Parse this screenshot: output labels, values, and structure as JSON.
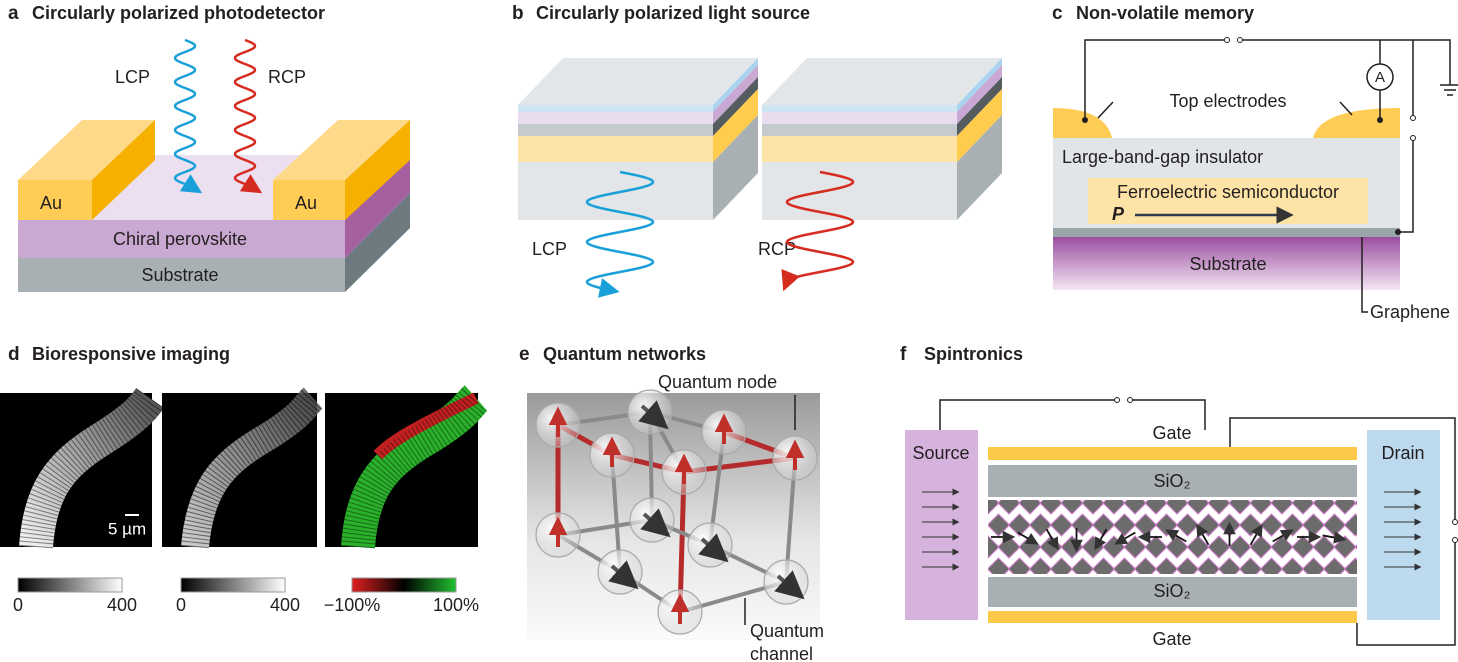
{
  "panels": [
    {
      "label": "a",
      "title": "Circularly polarized photodetector",
      "lcp": "LCP",
      "rcp": "RCP",
      "electrodes": [
        "Au",
        "Au"
      ],
      "layers": [
        "Chiral perovskite",
        "Substrate"
      ]
    },
    {
      "label": "b",
      "title": "Circularly polarized light source",
      "lcp": "LCP",
      "rcp": "RCP"
    },
    {
      "label": "c",
      "title": "Non-volatile memory",
      "top_electrodes": "Top electrodes",
      "ammeter": "A",
      "insulator": "Large-band-gap insulator",
      "semiconductor": "Ferroelectric semiconductor",
      "polarization": "P",
      "substrate": "Substrate",
      "graphene": "Graphene"
    },
    {
      "label": "d",
      "title": "Bioresponsive imaging",
      "scale_bar": "5 µm",
      "colorbars": [
        {
          "min": "0",
          "max": "400"
        },
        {
          "min": "0",
          "max": "400"
        },
        {
          "min": "−100%",
          "max": "100%"
        }
      ]
    },
    {
      "label": "e",
      "title": "Quantum networks",
      "node": "Quantum node",
      "channel": [
        "Quantum",
        "channel"
      ]
    },
    {
      "label": "f",
      "title": "Spintronics",
      "source": "Source",
      "drain": "Drain",
      "gates": [
        "Gate",
        "Gate"
      ],
      "oxides": [
        "SiO₂",
        "SiO₂"
      ]
    }
  ]
}
